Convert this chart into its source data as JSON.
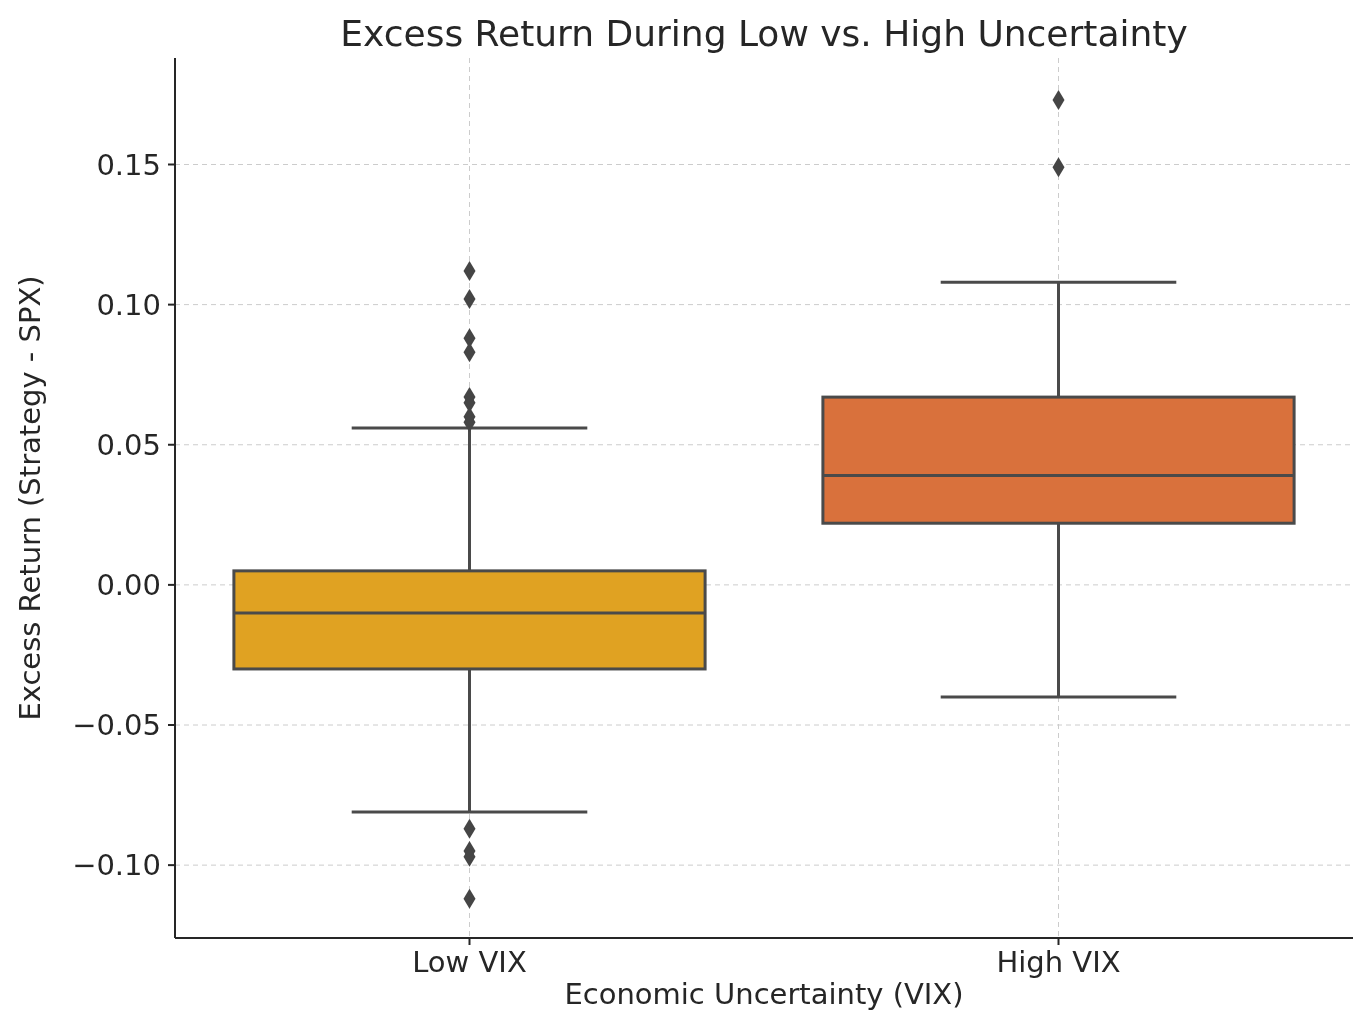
{
  "chart_data": {
    "type": "box",
    "title": "Excess Return During Low vs. High Uncertainty",
    "xlabel": "Economic Uncertainty (VIX)",
    "ylabel": "Excess Return (Strategy - SPX)",
    "categories": [
      "Low VIX",
      "High VIX"
    ],
    "colors": [
      "#e0a222",
      "#d9713c"
    ],
    "boxes": [
      {
        "low": -0.081,
        "q1": -0.03,
        "median": -0.01,
        "q3": 0.005,
        "high": 0.056,
        "outliers": [
          0.112,
          0.102,
          0.088,
          0.083,
          0.067,
          0.065,
          0.06,
          0.058,
          -0.087,
          -0.095,
          -0.097,
          -0.112
        ]
      },
      {
        "low": -0.04,
        "q1": 0.022,
        "median": 0.039,
        "q3": 0.067,
        "high": 0.108,
        "outliers": [
          0.173,
          0.149
        ]
      }
    ],
    "ylim": [
      -0.126,
      0.188
    ],
    "yticks": [
      {
        "value": -0.1,
        "label": "−0.10"
      },
      {
        "value": -0.05,
        "label": "−0.05"
      },
      {
        "value": 0,
        "label": "0.00"
      },
      {
        "value": 0.05,
        "label": "0.05"
      },
      {
        "value": 0.1,
        "label": "0.10"
      },
      {
        "value": 0.15,
        "label": "0.15"
      }
    ],
    "grid": true
  }
}
